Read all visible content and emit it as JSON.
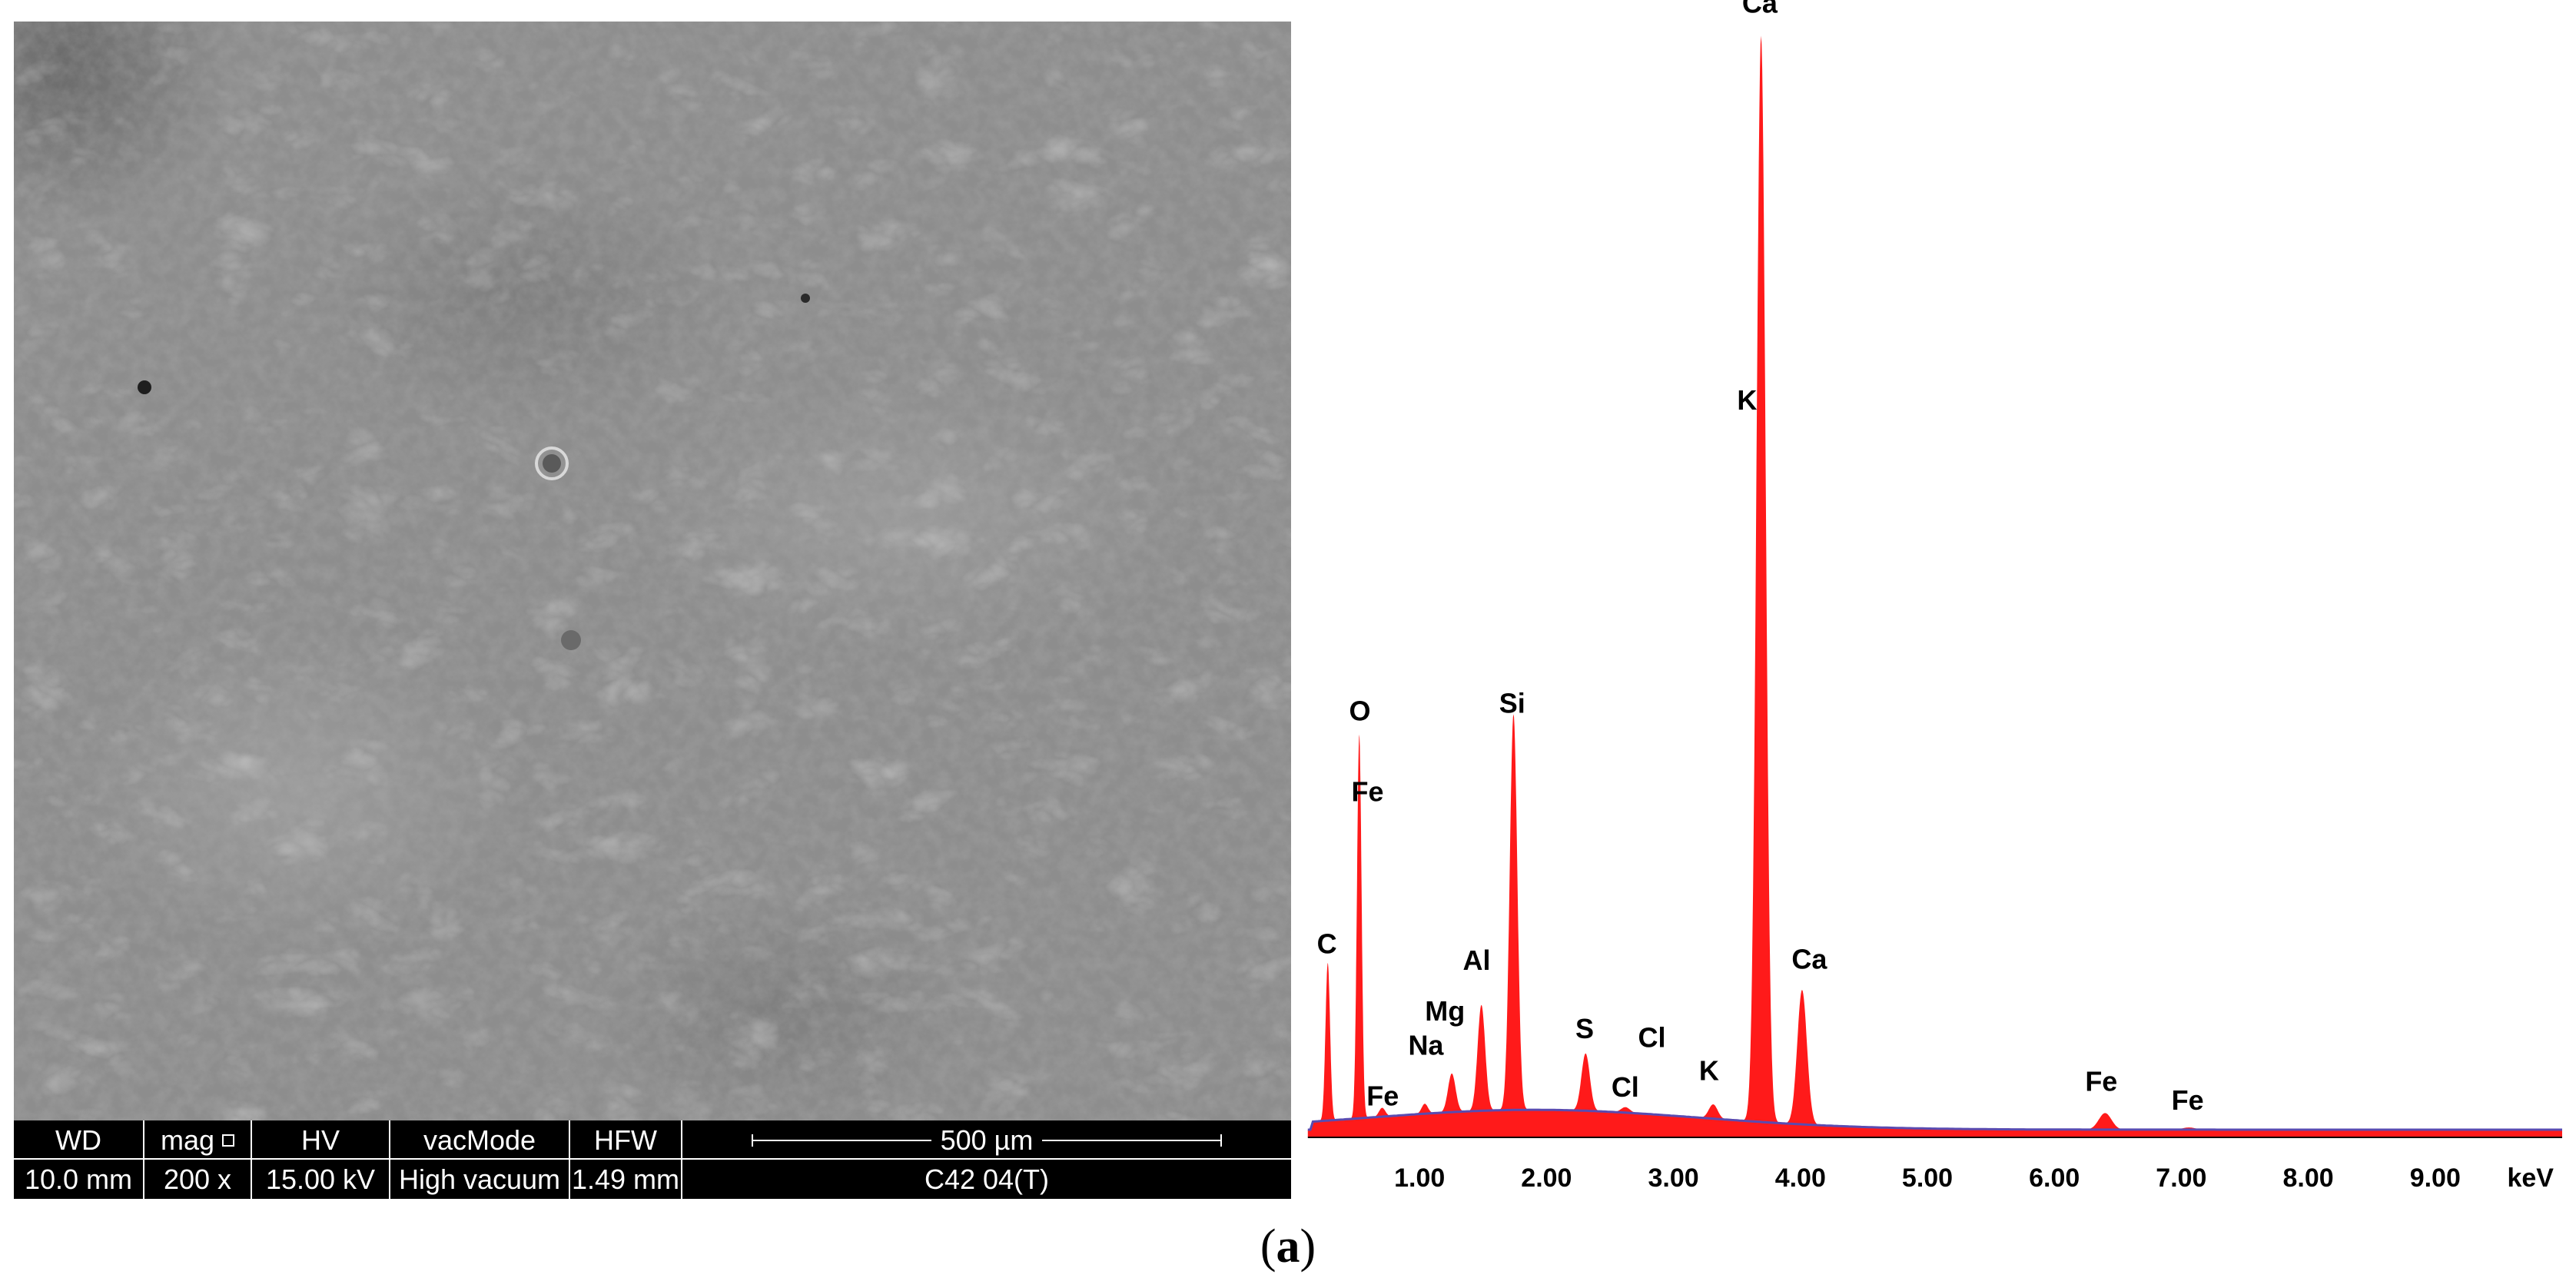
{
  "sem": {
    "databar": {
      "headers": [
        "WD",
        "mag",
        "HV",
        "vacMode",
        "HFW"
      ],
      "values": [
        "10.0 mm",
        "200 x",
        "15.00 kV",
        "High vacuum",
        "1.49 mm"
      ],
      "scale_label": "500 µm",
      "sample_id": "C42 04(T)"
    }
  },
  "chart_data": {
    "type": "line",
    "xlabel": "keV",
    "xlim": [
      0.0,
      10.0
    ],
    "x_ticks": [
      1.0,
      2.0,
      3.0,
      4.0,
      5.0,
      6.0,
      7.0,
      8.0,
      9.0
    ],
    "x_tick_labels": [
      "1.00",
      "2.00",
      "3.00",
      "4.00",
      "5.00",
      "6.00",
      "7.00",
      "8.00",
      "9.00"
    ],
    "ylim": [
      0,
      100
    ],
    "spectrum_color": "#ff1a1a",
    "background_color": "#5a4bb0",
    "peaks": [
      {
        "label": "C",
        "energy": 0.277,
        "height": 14.3,
        "width": 0.018
      },
      {
        "label": "O",
        "energy": 0.525,
        "height": 34.8,
        "width": 0.018
      },
      {
        "label": "Fe",
        "energy": 0.705,
        "height": 0.8,
        "width": 0.025
      },
      {
        "label": "Na",
        "energy": 1.041,
        "height": 0.9,
        "width": 0.025
      },
      {
        "label": "Mg",
        "energy": 1.254,
        "height": 3.5,
        "width": 0.03
      },
      {
        "label": "Al",
        "energy": 1.487,
        "height": 9.6,
        "width": 0.03
      },
      {
        "label": "Si",
        "energy": 1.74,
        "height": 35.9,
        "width": 0.03
      },
      {
        "label": "S",
        "energy": 2.308,
        "height": 5.2,
        "width": 0.033
      },
      {
        "label": "Cl",
        "energy": 2.622,
        "height": 0.5,
        "width": 0.035
      },
      {
        "label": "K",
        "energy": 3.313,
        "height": 1.3,
        "width": 0.035
      },
      {
        "label": "Ca",
        "energy": 3.69,
        "height": 98.5,
        "width": 0.036
      },
      {
        "label": "Ca",
        "energy": 4.013,
        "height": 12.2,
        "width": 0.038
      },
      {
        "label": "Fe",
        "energy": 6.4,
        "height": 1.5,
        "width": 0.05
      },
      {
        "label": "Fe",
        "energy": 7.06,
        "height": 0.2,
        "width": 0.05
      }
    ],
    "background_hump": {
      "center": 1.9,
      "height": 1.8,
      "sigma": 1.3,
      "baseline": 0.7
    },
    "annotations": [
      {
        "text": "C",
        "x": 0.27,
        "y": 16.7
      },
      {
        "text": "O",
        "x": 0.53,
        "y": 37.8
      },
      {
        "text": "Fe",
        "x": 0.59,
        "y": 30.5
      },
      {
        "text": "Fe",
        "x": 0.71,
        "y": 2.9
      },
      {
        "text": "Na",
        "x": 1.05,
        "y": 7.5
      },
      {
        "text": "Mg",
        "x": 1.2,
        "y": 10.6
      },
      {
        "text": "Al",
        "x": 1.45,
        "y": 15.2
      },
      {
        "text": "Si",
        "x": 1.73,
        "y": 38.5
      },
      {
        "text": "S",
        "x": 2.3,
        "y": 9.0
      },
      {
        "text": "Cl",
        "x": 2.62,
        "y": 3.7
      },
      {
        "text": "Cl",
        "x": 2.83,
        "y": 8.2
      },
      {
        "text": "K",
        "x": 3.28,
        "y": 5.2
      },
      {
        "text": "K",
        "x": 3.58,
        "y": 66.0
      },
      {
        "text": "Ca",
        "x": 3.68,
        "y": 102.0
      },
      {
        "text": "Ca",
        "x": 4.07,
        "y": 15.3
      },
      {
        "text": "Fe",
        "x": 6.37,
        "y": 4.2
      },
      {
        "text": "Fe",
        "x": 7.05,
        "y": 2.5
      }
    ]
  },
  "caption": {
    "open": "(",
    "letter": "a",
    "close": ")"
  }
}
